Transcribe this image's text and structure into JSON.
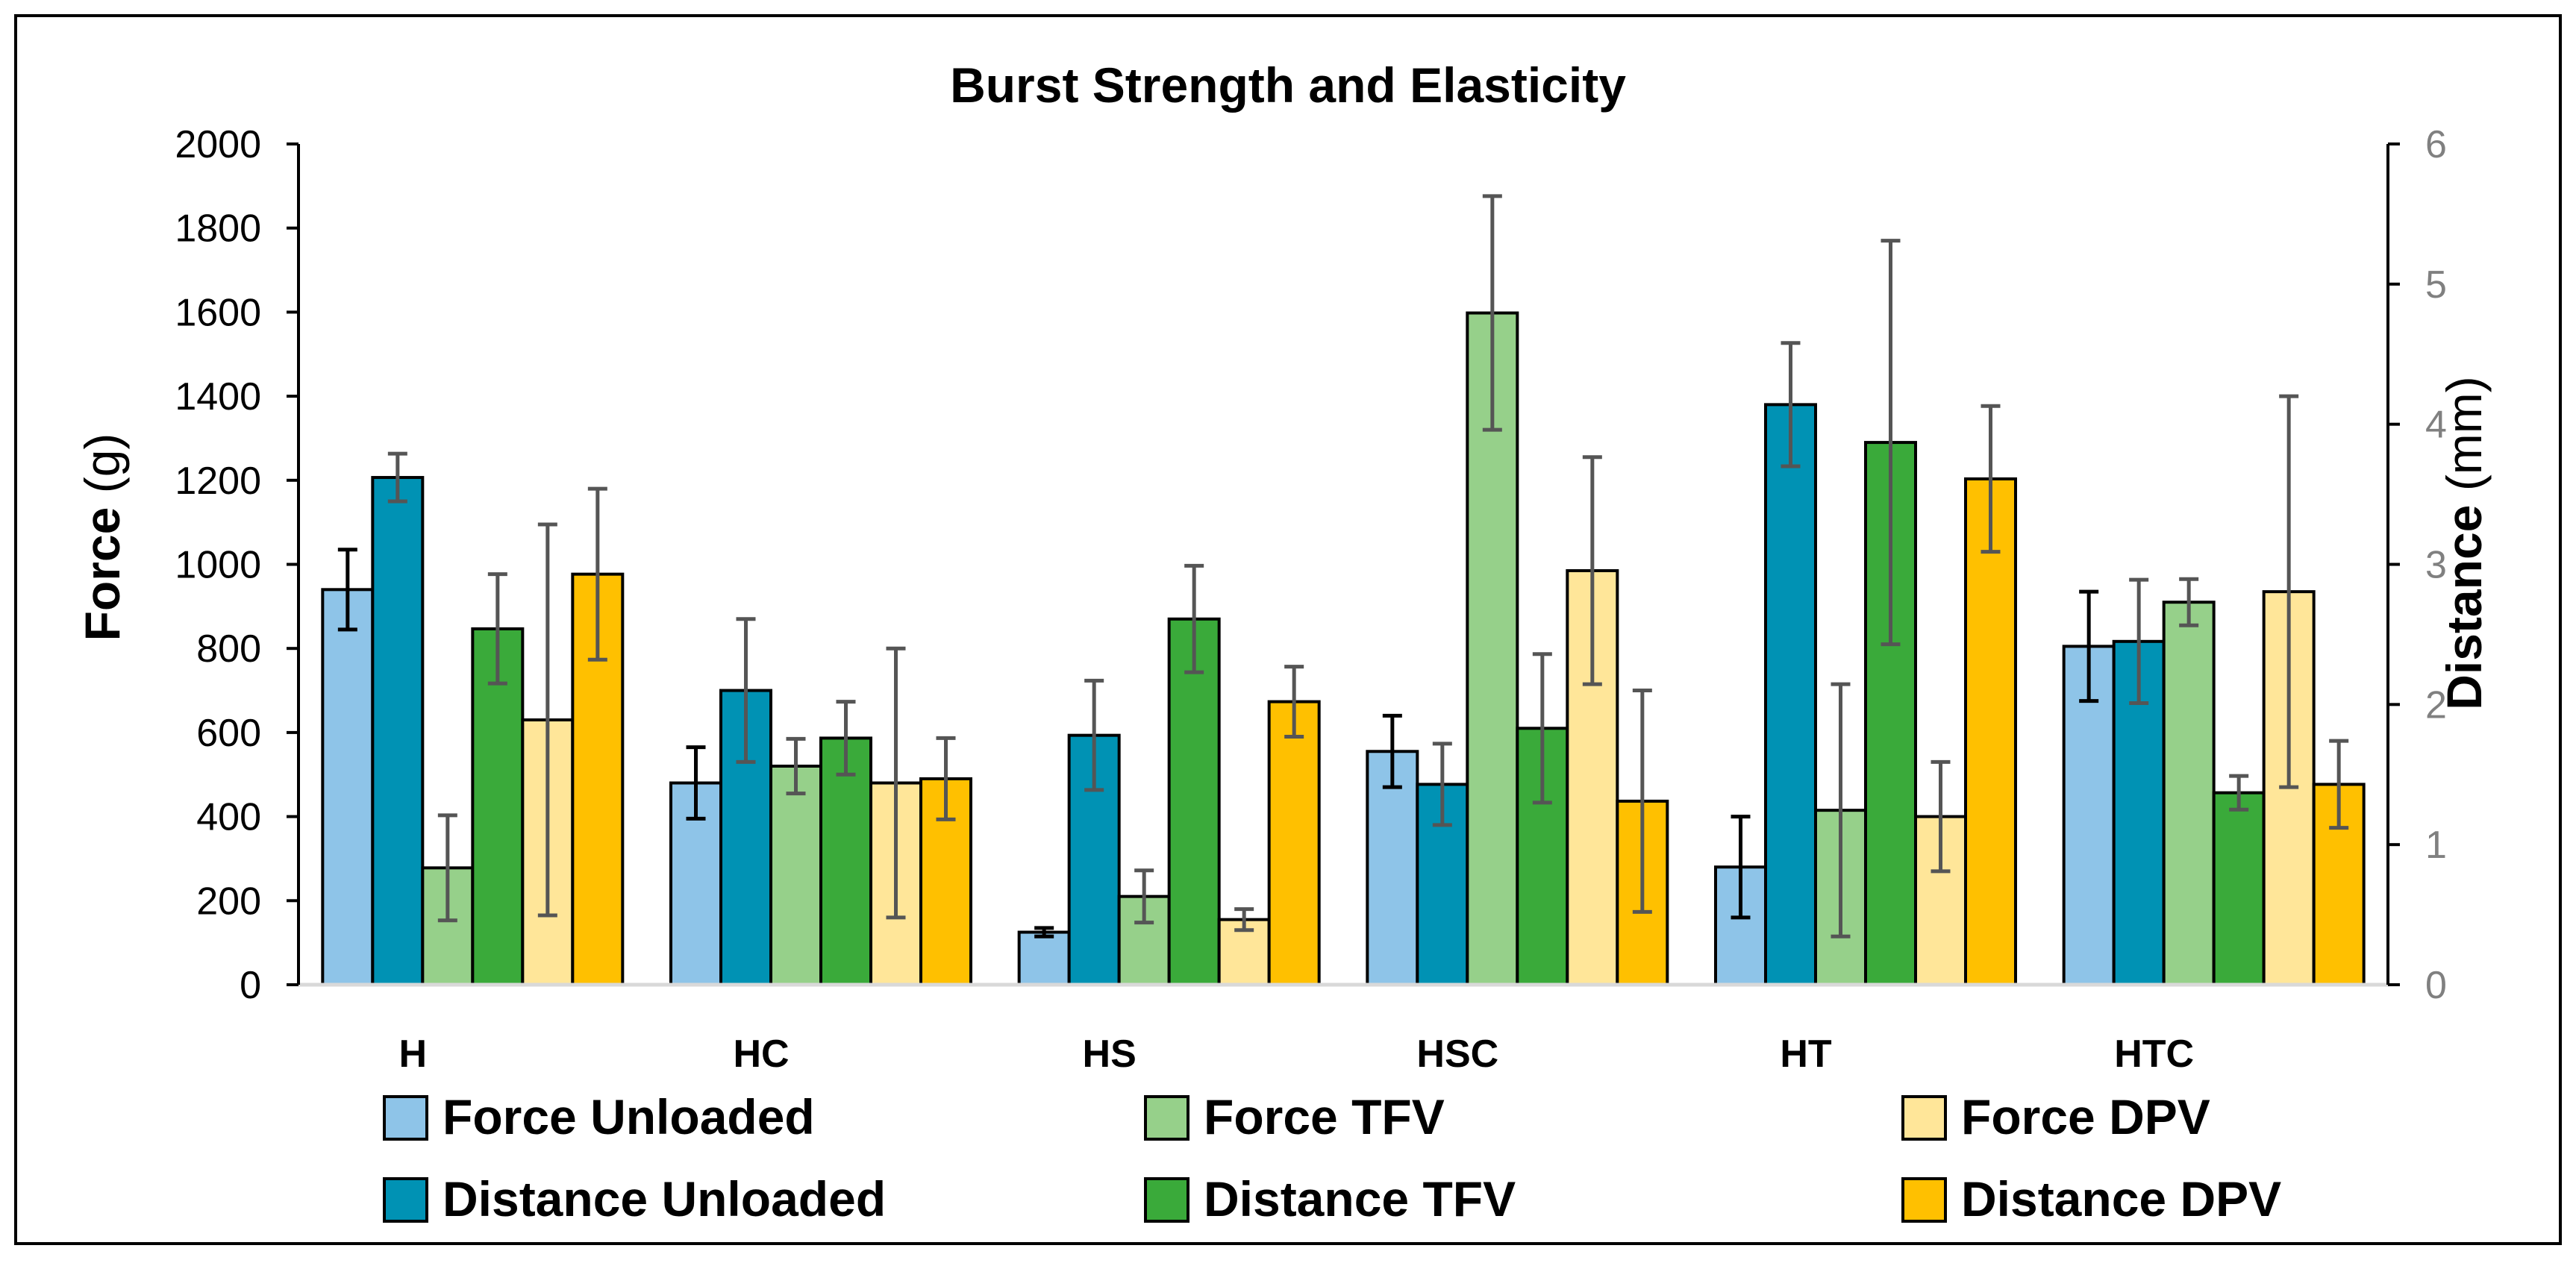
{
  "chart_data": {
    "type": "bar",
    "title": "Burst Strength and Elasticity",
    "categories": [
      "H",
      "HC",
      "HS",
      "HSC",
      "HT",
      "HTC"
    ],
    "y_left": {
      "label_main": "Force",
      "label_unit": "(g)",
      "range": [
        0,
        2000
      ],
      "ticks": [
        "0",
        "200",
        "400",
        "600",
        "800",
        "1000",
        "1200",
        "1400",
        "1600",
        "1800",
        "2000"
      ]
    },
    "y_right": {
      "label_main": "Distance",
      "label_unit": "(mm)",
      "range": [
        0,
        6
      ],
      "ticks": [
        "0",
        "1",
        "2",
        "3",
        "4",
        "5",
        "6"
      ]
    },
    "grid": false,
    "legend_position": "bottom",
    "series": [
      {
        "name": "Force Unloaded",
        "axis": "left",
        "color": "#8ec4e8",
        "error_color": "#000000",
        "values": [
          940,
          480,
          125,
          555,
          280,
          805
        ],
        "errors": [
          95,
          85,
          10,
          85,
          120,
          130
        ]
      },
      {
        "name": "Distance Unloaded",
        "axis": "right",
        "color": "#0092b4",
        "error_color": "#555555",
        "values": [
          3.62,
          2.1,
          1.78,
          1.43,
          4.14,
          2.45
        ],
        "errors": [
          0.17,
          0.51,
          0.39,
          0.29,
          0.44,
          0.44
        ]
      },
      {
        "name": "Force TFV",
        "axis": "left",
        "color": "#96d08a",
        "error_color": "#555555",
        "values": [
          278,
          520,
          210,
          1598,
          415,
          910
        ],
        "errors": [
          125,
          65,
          62,
          278,
          300,
          55
        ]
      },
      {
        "name": "Distance TFV",
        "axis": "right",
        "color": "#3aaa3a",
        "error_color": "#555555",
        "values": [
          2.54,
          1.76,
          2.61,
          1.83,
          3.87,
          1.37
        ],
        "errors": [
          0.39,
          0.26,
          0.38,
          0.53,
          1.44,
          0.12
        ]
      },
      {
        "name": "Force DPV",
        "axis": "left",
        "color": "#ffe699",
        "error_color": "#555555",
        "values": [
          630,
          480,
          155,
          985,
          400,
          935
        ],
        "errors": [
          465,
          320,
          25,
          270,
          130,
          465
        ]
      },
      {
        "name": "Distance DPV",
        "axis": "right",
        "color": "#ffc000",
        "error_color": "#555555",
        "values": [
          2.93,
          1.47,
          2.02,
          1.31,
          3.61,
          1.43
        ],
        "errors": [
          0.61,
          0.29,
          0.25,
          0.79,
          0.52,
          0.31
        ]
      }
    ]
  }
}
